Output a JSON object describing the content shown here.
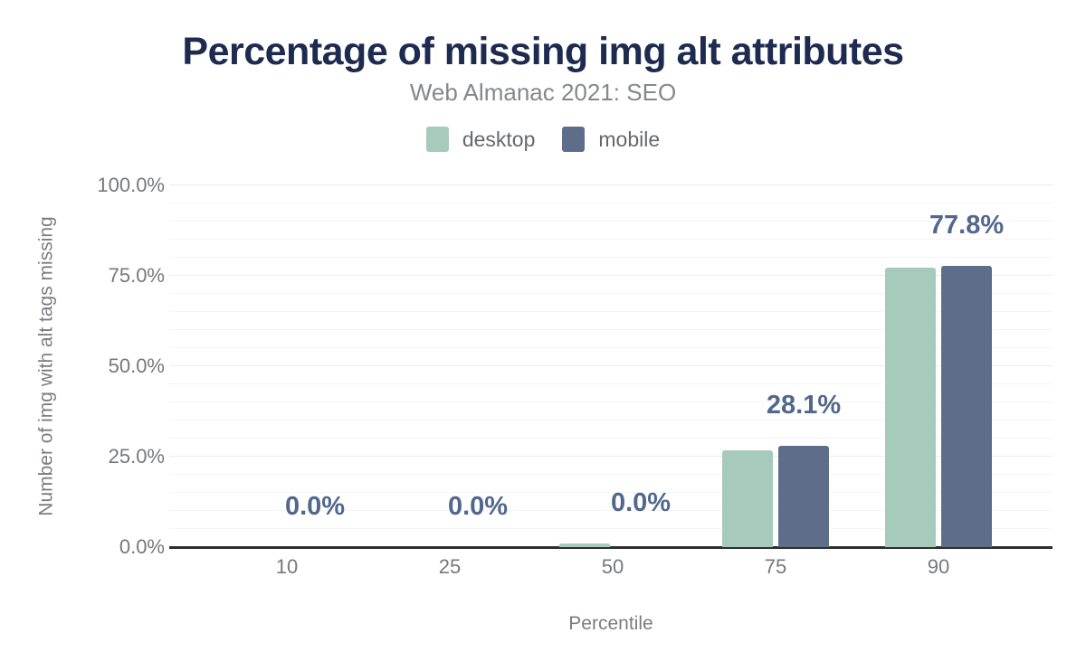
{
  "chart": {
    "title": "Percentage of missing img alt attributes",
    "subtitle": "Web Almanac 2021: SEO",
    "xlabel": "Percentile",
    "ylabel": "Number of img with alt tags missing"
  },
  "chart_data": {
    "type": "bar",
    "title": "Percentage of missing img alt attributes",
    "subtitle": "Web Almanac 2021: SEO",
    "xlabel": "Percentile",
    "ylabel": "Number of img with alt tags missing",
    "categories": [
      "10",
      "25",
      "50",
      "75",
      "90"
    ],
    "series": [
      {
        "name": "desktop",
        "color": "#a6cabb",
        "values": [
          0.0,
          0.0,
          0.9,
          26.8,
          77.2
        ]
      },
      {
        "name": "mobile",
        "color": "#5e6e8a",
        "values": [
          0.0,
          0.0,
          0.0,
          28.1,
          77.8
        ]
      }
    ],
    "bar_labels": [
      "0.0%",
      "0.0%",
      "0.0%",
      "28.1%",
      "77.8%"
    ],
    "ylim": [
      0,
      100
    ],
    "yticks": [
      {
        "value": 0,
        "label": "0.0%"
      },
      {
        "value": 25,
        "label": "25.0%"
      },
      {
        "value": 50,
        "label": "50.0%"
      },
      {
        "value": 75,
        "label": "75.0%"
      },
      {
        "value": 100,
        "label": "100.0%"
      }
    ],
    "minor_grid_step": 5,
    "grid": true,
    "legend_position": "top"
  },
  "legend": {
    "items": [
      {
        "label": "desktop",
        "color": "#a6cabb"
      },
      {
        "label": "mobile",
        "color": "#5e6e8a"
      }
    ]
  },
  "colors": {
    "title": "#1e2b50",
    "subtitle": "#85888b",
    "legend_text": "#66696c",
    "tick_text": "#76787b",
    "axis_title_text": "#7a7d80",
    "data_label": "#51678e",
    "axis_line": "#2e2e2e",
    "grid_minor": "#f5f5f5",
    "grid_major": "#ececec"
  }
}
